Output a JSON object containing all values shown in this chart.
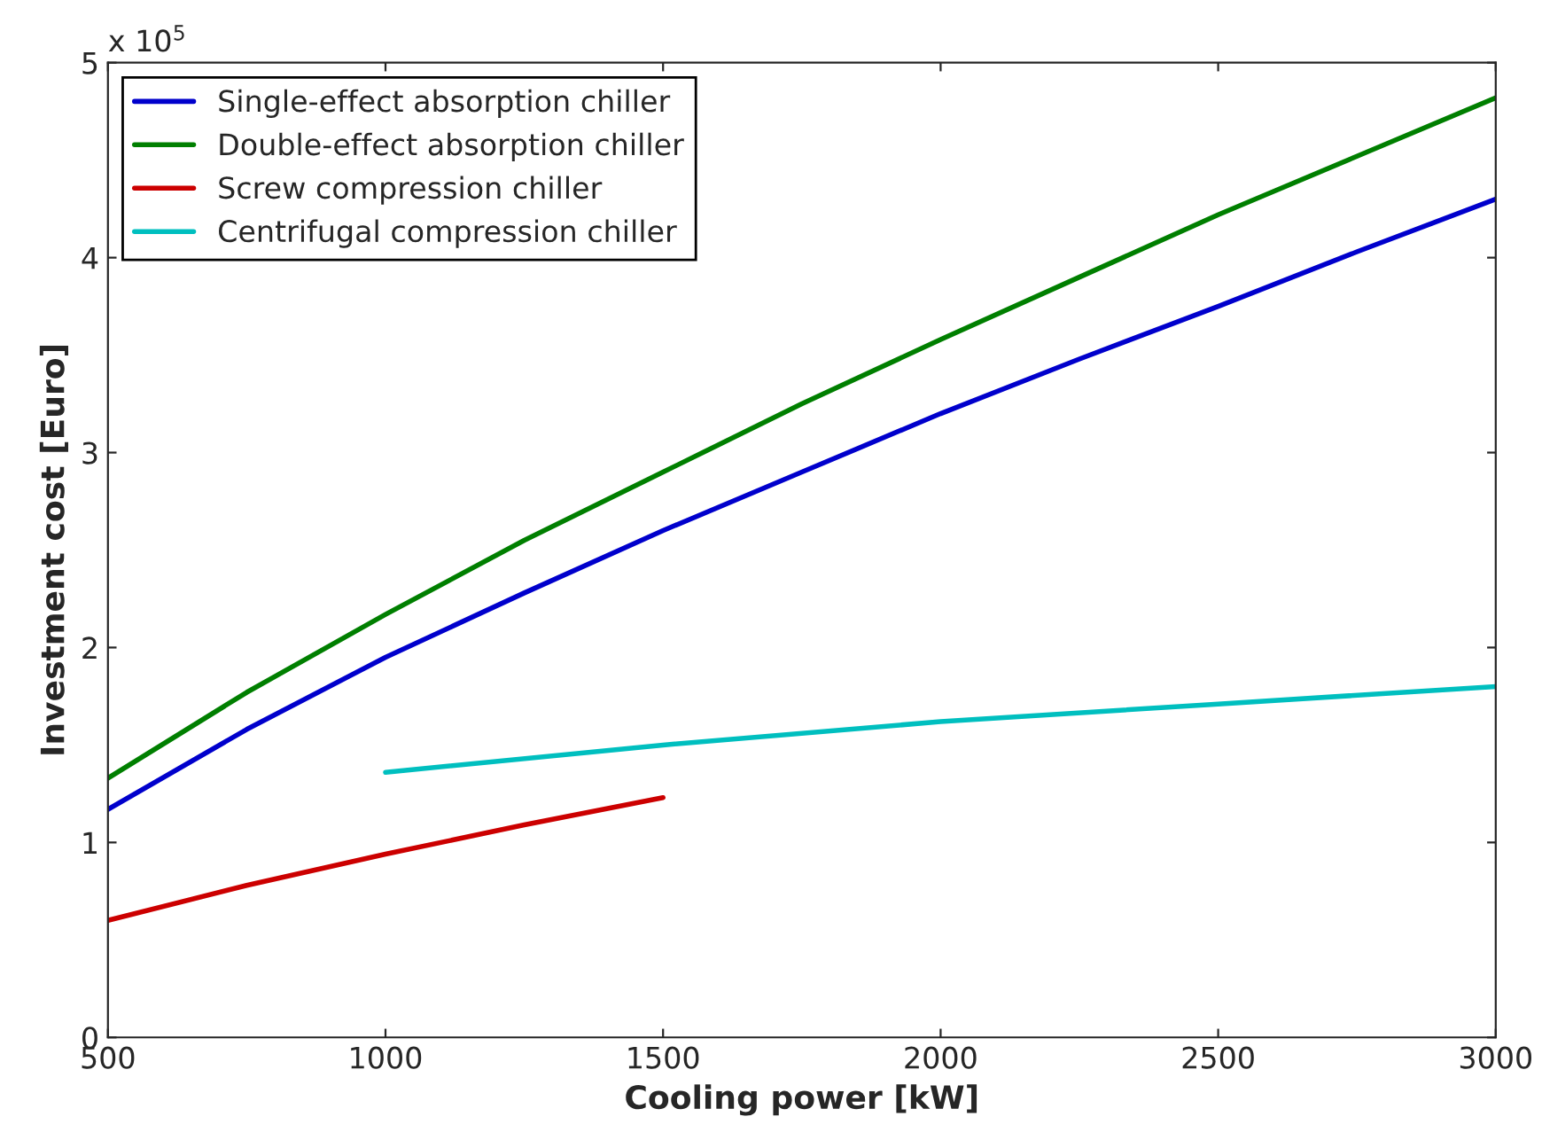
{
  "chart_data": {
    "type": "line",
    "xlabel": "Cooling power [kW]",
    "ylabel": "Investment cost [Euro]",
    "annotations": [
      "x 10$^{5}$"
    ],
    "xlim": [
      500,
      3000
    ],
    "xticks": [
      500,
      1000,
      1500,
      2000,
      2500,
      3000
    ],
    "ylim": [
      0,
      5
    ],
    "yticks": [
      0,
      1,
      2,
      3,
      4,
      5
    ],
    "grid": false,
    "legend": "top left",
    "marker": "none",
    "line_style": "solid",
    "series": [
      {
        "name": "Single-effect absorption chiller",
        "color": "#0000cc",
        "x": [
          500,
          750,
          1000,
          1250,
          1500,
          1750,
          2000,
          2250,
          2500,
          2750,
          3000
        ],
        "values": [
          1.17,
          1.58,
          1.95,
          2.28,
          2.6,
          2.9,
          3.2,
          3.48,
          3.75,
          4.03,
          4.3
        ]
      },
      {
        "name": "Double-effect absorption chiller",
        "color": "#007f00",
        "x": [
          500,
          750,
          1000,
          1250,
          1500,
          1750,
          2000,
          2250,
          2500,
          2750,
          3000
        ],
        "values": [
          1.33,
          1.77,
          2.17,
          2.55,
          2.9,
          3.25,
          3.58,
          3.9,
          4.22,
          4.52,
          4.82
        ]
      },
      {
        "name": "Screw compression chiller",
        "color": "#cc0000",
        "x": [
          500,
          750,
          1000,
          1250,
          1500
        ],
        "values": [
          0.6,
          0.78,
          0.94,
          1.09,
          1.23
        ]
      },
      {
        "name": "Centrifugal compression chiller",
        "color": "#00bfbf",
        "x": [
          1000,
          1500,
          2000,
          2500,
          3000
        ],
        "values": [
          1.36,
          1.5,
          1.62,
          1.71,
          1.8
        ]
      }
    ]
  }
}
